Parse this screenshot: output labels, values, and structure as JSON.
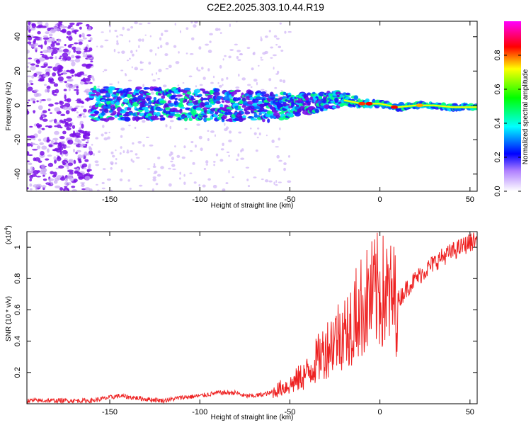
{
  "title": "C2E2.2025.303.10.44.R19",
  "chart_data": [
    {
      "type": "heatmap",
      "title": "C2E2.2025.303.10.44.R19",
      "xlabel": "Height of straight line (km)",
      "ylabel": "Frequency (Hz)",
      "xlim": [
        -196,
        54
      ],
      "ylim": [
        -50,
        49
      ],
      "xticks": [
        -150,
        -100,
        -50,
        0,
        50
      ],
      "yticks": [
        -40,
        -20,
        0,
        20,
        40
      ],
      "colorbar": {
        "label": "Normalized spectral amplitude",
        "range": [
          0.0,
          1.0
        ],
        "ticks": [
          0.0,
          0.2,
          0.4,
          0.6,
          0.8
        ],
        "colormap": [
          "#ffffff",
          "#8800ff",
          "#0000ff",
          "#00ffff",
          "#00ff00",
          "#ffff00",
          "#ff0000",
          "#ff00ff"
        ]
      },
      "signal_trace": {
        "description_points_x": [
          -160,
          -120,
          -80,
          -60,
          -40,
          -20,
          -10,
          0,
          10,
          20,
          30,
          40,
          54
        ],
        "frequency_center": [
          1,
          1,
          0,
          -1,
          1,
          4,
          1,
          1,
          -1,
          0,
          0,
          -1,
          -1
        ],
        "band_half_width": [
          10,
          9,
          9,
          8,
          6,
          4,
          2,
          1.5,
          1.5,
          1.5,
          1.5,
          1.5,
          1.5
        ]
      }
    },
    {
      "type": "line",
      "xlabel": "Height of straight line (km)",
      "ylabel": "SNR (10 * v/v)",
      "y_multiplier_label": "(x10",
      "y_multiplier_exp": "4",
      "y_multiplier_close": ")",
      "xlim": [
        -196,
        54
      ],
      "ylim": [
        0,
        1.1
      ],
      "xticks": [
        -150,
        -100,
        -50,
        0,
        50
      ],
      "yticks": [
        0.2,
        0.4,
        0.6,
        0.8,
        1
      ],
      "ytick_labels": [
        "0.2",
        "0.4",
        "0.6",
        "0.8",
        "1"
      ],
      "color": "#ee2222",
      "series": [
        {
          "name": "SNR",
          "x": [
            -196,
            -170,
            -160,
            -150,
            -145,
            -130,
            -120,
            -110,
            -100,
            -95,
            -90,
            -85,
            -80,
            -75,
            -70,
            -65,
            -60,
            -55,
            -50,
            -45,
            -40,
            -35,
            -30,
            -25,
            -20,
            -15,
            -10,
            -5,
            0,
            5,
            10,
            15,
            20,
            25,
            30,
            35,
            40,
            45,
            50,
            54
          ],
          "values": [
            0.02,
            0.02,
            0.02,
            0.04,
            0.05,
            0.03,
            0.02,
            0.04,
            0.05,
            0.06,
            0.07,
            0.07,
            0.07,
            0.05,
            0.05,
            0.06,
            0.07,
            0.1,
            0.12,
            0.16,
            0.2,
            0.28,
            0.35,
            0.42,
            0.48,
            0.55,
            0.62,
            0.68,
            0.72,
            0.68,
            0.66,
            0.74,
            0.8,
            0.85,
            0.9,
            0.94,
            0.97,
            1.0,
            1.03,
            1.05
          ]
        }
      ]
    }
  ]
}
